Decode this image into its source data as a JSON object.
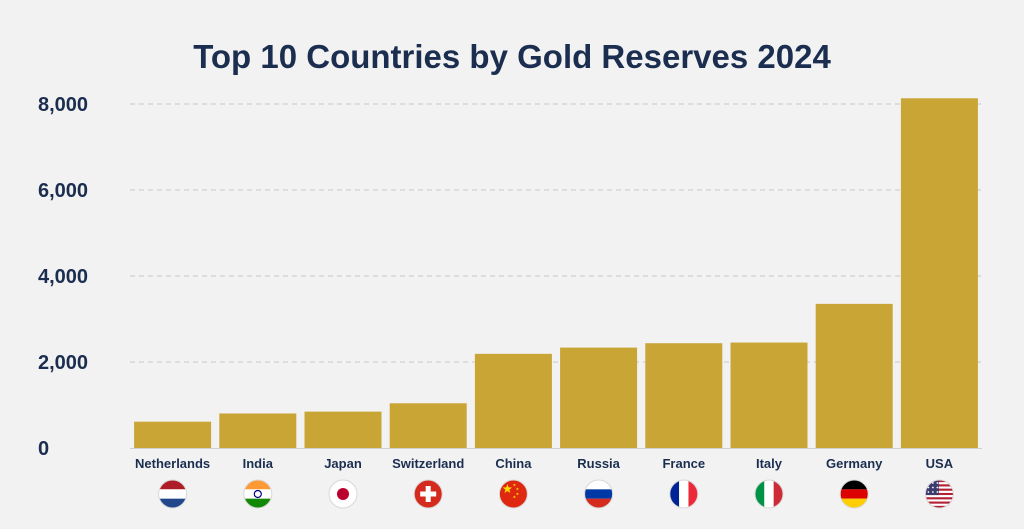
{
  "chart_data": {
    "type": "bar",
    "title": "Top 10 Countries by Gold Reserves 2024",
    "xlabel": "",
    "ylabel": "",
    "ylim": [
      0,
      8000
    ],
    "yticks": [
      0,
      2000,
      4000,
      6000,
      8000
    ],
    "ytick_labels": [
      "0",
      "2,000",
      "4,000",
      "6,000",
      "8,000"
    ],
    "grid": true,
    "legend": "none",
    "bar_color": "#c9a535",
    "categories": [
      "Netherlands",
      "India",
      "Japan",
      "Switzerland",
      "China",
      "Russia",
      "France",
      "Italy",
      "Germany",
      "USA"
    ],
    "values": [
      612,
      803,
      846,
      1040,
      2190,
      2335,
      2437,
      2452,
      3352,
      8133
    ],
    "flags": [
      "netherlands-flag-icon",
      "india-flag-icon",
      "japan-flag-icon",
      "switzerland-flag-icon",
      "china-flag-icon",
      "russia-flag-icon",
      "france-flag-icon",
      "italy-flag-icon",
      "germany-flag-icon",
      "usa-flag-icon"
    ]
  }
}
